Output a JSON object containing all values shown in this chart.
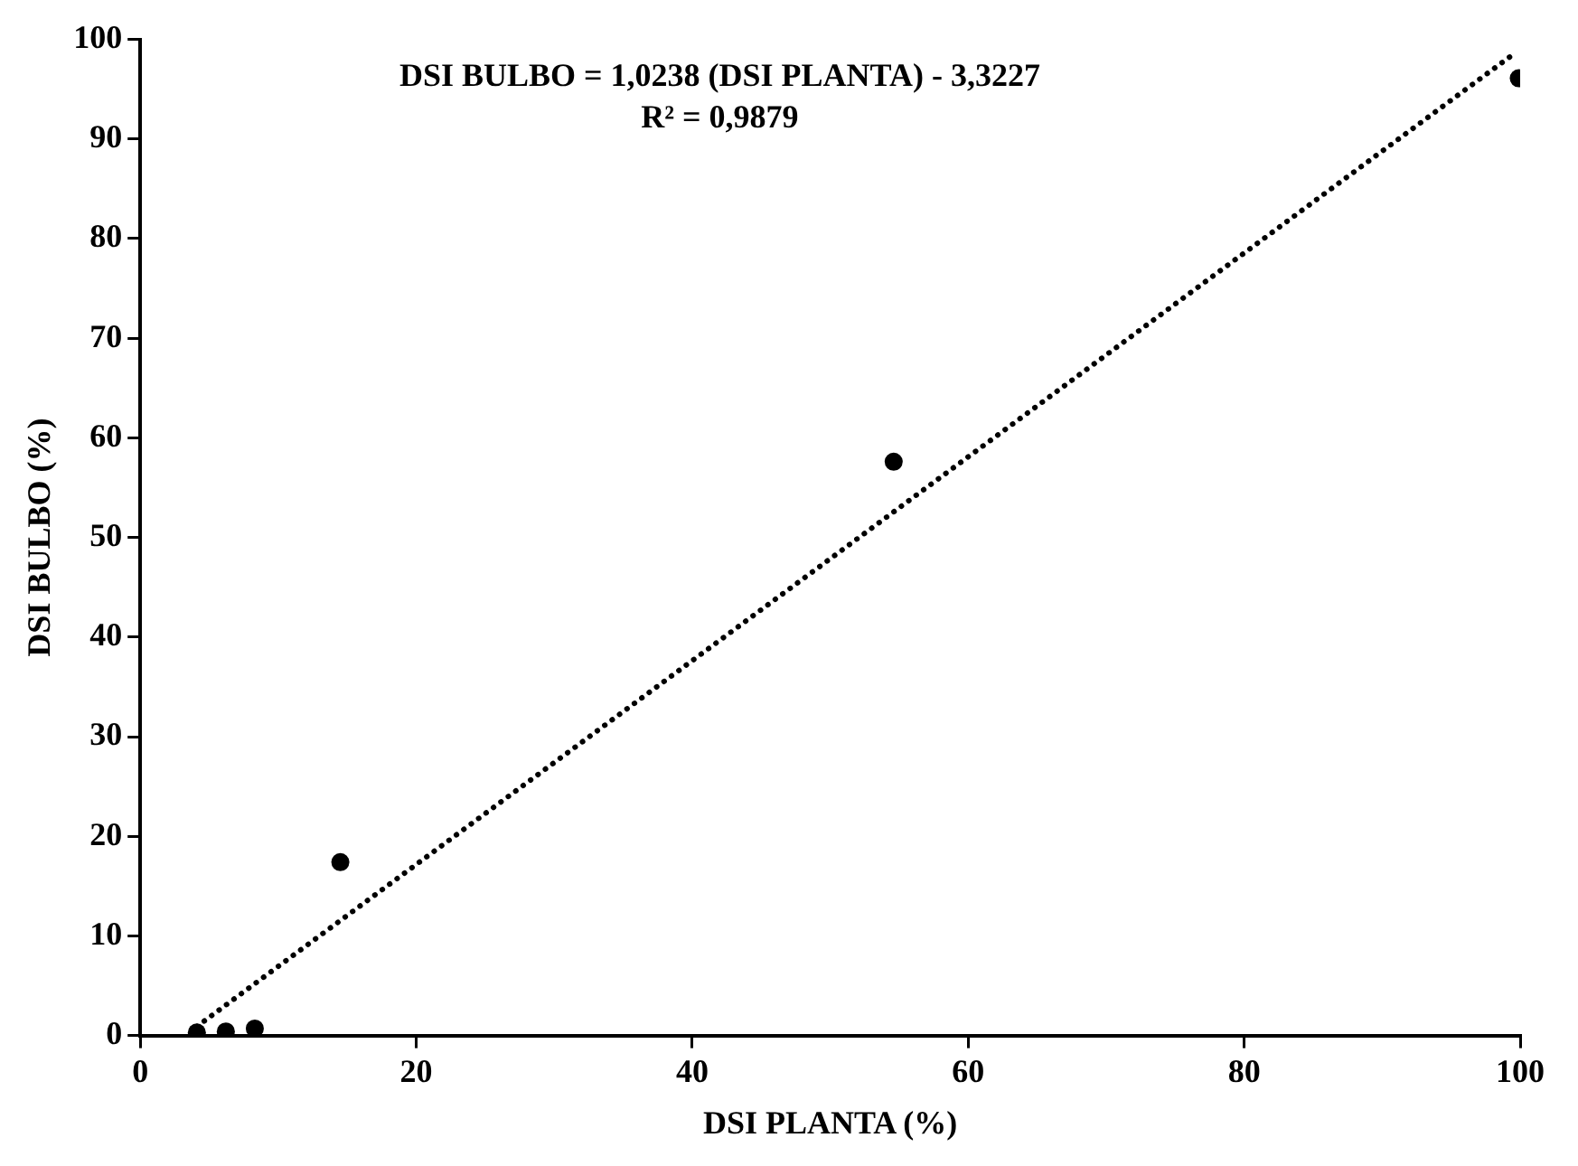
{
  "chart_data": {
    "type": "scatter",
    "xlabel": "DSI PLANTA (%)",
    "ylabel": "DSI BULBO (%)",
    "annotations": [
      "DSI BULBO = 1,0238 (DSI PLANTA) - 3,3227",
      "R² = 0,9879"
    ],
    "xlim": [
      0,
      100
    ],
    "xticks": [
      0,
      20,
      40,
      60,
      80,
      100
    ],
    "ylim": [
      0,
      100
    ],
    "yticks": [
      0,
      10,
      20,
      30,
      40,
      50,
      60,
      70,
      80,
      90,
      100
    ],
    "grid": false,
    "legend": false,
    "marker": "circle",
    "series": [
      {
        "type": "scatter",
        "color": "#000000",
        "x": [
          4.1,
          6.2,
          8.3,
          14.5,
          54.6,
          99.9
        ],
        "values": [
          0.3,
          0.4,
          0.7,
          17.4,
          57.6,
          96.1
        ]
      },
      {
        "type": "line",
        "color": "#000000",
        "line_style": "dotted",
        "marker": "none",
        "x": [
          4.1,
          99.4
        ],
        "values": [
          0.9,
          98.4
        ]
      }
    ]
  }
}
